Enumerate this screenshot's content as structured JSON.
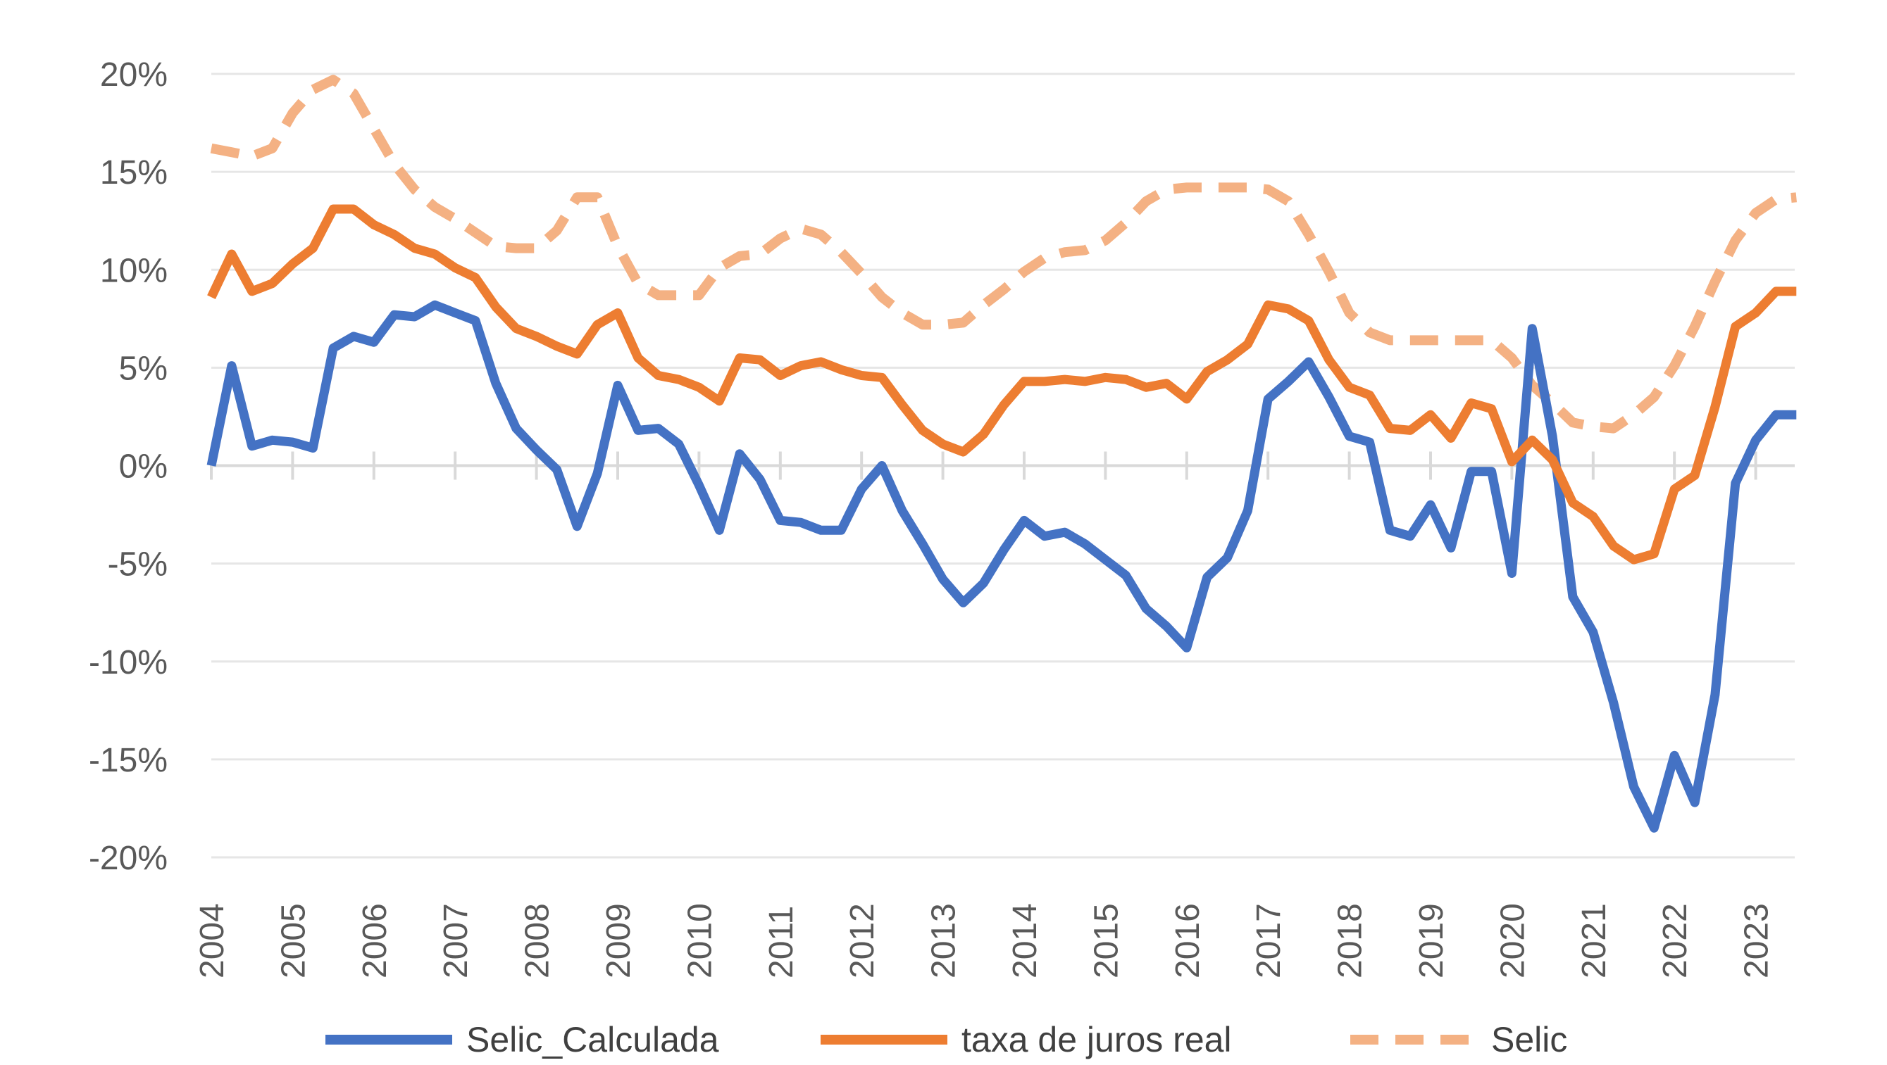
{
  "chart_data": {
    "type": "line",
    "title": "",
    "xlabel": "",
    "ylabel": "",
    "x_unit": "quarter",
    "x_start": "2004",
    "x_end": "2023",
    "x_tick_labels": [
      "2004",
      "2005",
      "2006",
      "2007",
      "2008",
      "2009",
      "2010",
      "2011",
      "2012",
      "2013",
      "2014",
      "2015",
      "2016",
      "2017",
      "2018",
      "2019",
      "2020",
      "2021",
      "2022",
      "2023"
    ],
    "y_tick_labels": [
      "20%",
      "15%",
      "10%",
      "5%",
      "0%",
      "-5%",
      "-10%",
      "-15%",
      "-20%"
    ],
    "ylim": [
      -20,
      20
    ],
    "y_unit": "%",
    "grid": "horizontal",
    "legend_position": "bottom",
    "series": [
      {
        "name": "Selic_Calculada",
        "color": "#4472c4",
        "style": "solid",
        "values": [
          0.0,
          5.1,
          1.0,
          1.3,
          1.2,
          0.9,
          6.0,
          6.6,
          6.3,
          7.7,
          7.6,
          8.2,
          7.8,
          7.4,
          4.2,
          1.9,
          0.8,
          -0.2,
          -3.1,
          -0.4,
          4.1,
          1.8,
          1.9,
          1.1,
          -1.0,
          -3.3,
          0.6,
          -0.7,
          -2.8,
          -2.9,
          -3.3,
          -3.3,
          -1.2,
          0.0,
          -2.3,
          -4.0,
          -5.8,
          -7.0,
          -6.0,
          -4.3,
          -2.8,
          -3.6,
          -3.4,
          -4.0,
          -4.8,
          -5.6,
          -7.3,
          -8.2,
          -9.3,
          -5.7,
          -4.7,
          -2.3,
          3.4,
          4.3,
          5.3,
          3.5,
          1.5,
          1.2,
          -3.3,
          -3.6,
          -2.0,
          -4.2,
          -0.3,
          -0.3,
          -5.5,
          7.0,
          1.5,
          -6.7,
          -8.5,
          -12.1,
          -16.4,
          -18.5,
          -14.8,
          -17.2,
          -11.7,
          -0.9,
          1.3,
          2.6,
          2.6
        ]
      },
      {
        "name": "taxa de juros real",
        "color": "#ed7d31",
        "style": "solid",
        "values": [
          8.6,
          10.8,
          8.9,
          9.3,
          10.3,
          11.1,
          13.1,
          13.1,
          12.3,
          11.8,
          11.1,
          10.8,
          10.1,
          9.6,
          8.1,
          7.0,
          6.6,
          6.1,
          5.7,
          7.2,
          7.8,
          5.5,
          4.6,
          4.4,
          4.0,
          3.3,
          5.5,
          5.4,
          4.6,
          5.1,
          5.3,
          4.9,
          4.6,
          4.5,
          3.1,
          1.8,
          1.1,
          0.7,
          1.6,
          3.1,
          4.3,
          4.3,
          4.4,
          4.3,
          4.5,
          4.4,
          4.0,
          4.2,
          3.4,
          4.8,
          5.4,
          6.2,
          8.2,
          8.0,
          7.4,
          5.4,
          4.0,
          3.6,
          1.9,
          1.8,
          2.6,
          1.4,
          3.2,
          2.9,
          0.2,
          1.3,
          0.3,
          -1.9,
          -2.6,
          -4.1,
          -4.8,
          -4.5,
          -1.2,
          -0.5,
          3.0,
          7.1,
          7.8,
          8.9,
          8.9
        ]
      },
      {
        "name": "Selic",
        "color": "#f4b183",
        "style": "dashed",
        "values": [
          16.2,
          16.0,
          15.8,
          16.2,
          18.0,
          19.2,
          19.7,
          19.0,
          17.2,
          15.4,
          14.1,
          13.2,
          12.6,
          11.9,
          11.2,
          11.1,
          11.1,
          12.0,
          13.7,
          13.7,
          11.2,
          9.3,
          8.7,
          8.7,
          8.7,
          10.1,
          10.7,
          10.8,
          11.6,
          12.1,
          11.8,
          10.9,
          9.8,
          8.6,
          7.8,
          7.2,
          7.2,
          7.3,
          8.2,
          9.0,
          9.9,
          10.6,
          10.9,
          11.0,
          11.5,
          12.4,
          13.5,
          14.1,
          14.2,
          14.2,
          14.2,
          14.2,
          14.1,
          13.5,
          11.8,
          9.9,
          7.8,
          6.8,
          6.4,
          6.4,
          6.4,
          6.4,
          6.4,
          6.4,
          5.5,
          4.1,
          3.2,
          2.2,
          2.0,
          1.9,
          2.6,
          3.5,
          5.1,
          7.1,
          9.4,
          11.5,
          12.9,
          13.6,
          13.7
        ]
      }
    ]
  }
}
